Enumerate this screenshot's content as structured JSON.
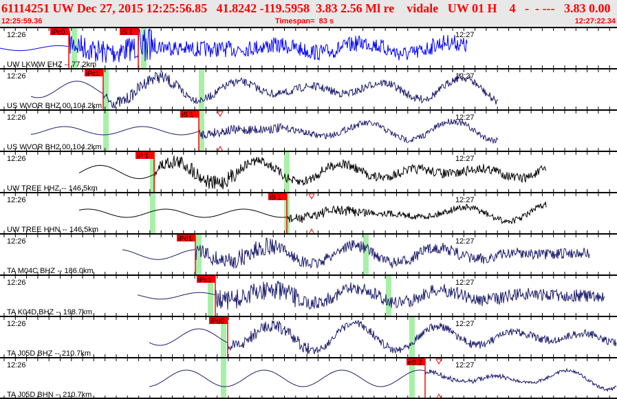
{
  "header": {
    "title": "61114251 UW Dec 27, 2015 12:25:56.85   41.8242 -119.5958  3.83 2.56 Ml re    vidale   UW 01 H    4   -  - ---   3.83 0.00",
    "start_time": "12:25:59.36",
    "timespan": "Timespan=  83 s",
    "end_time": "12:27:22.34"
  },
  "time_labels": {
    "minute1": "12:26",
    "minute2": "12:27"
  },
  "colors": {
    "pick": "#ff0000",
    "window": "#a8f0a8",
    "blue": "#0000ff",
    "navy": "#1c1c6c",
    "black": "#000000",
    "header_bg": "#e8e8e8"
  },
  "channels": [
    {
      "label": "UW LKWW EHZ -- 77.2km",
      "color": "blue",
      "pick": "iPc0",
      "s_pick": "iS 1"
    },
    {
      "label": "US WVOR BHZ 00 104.2km",
      "color": "navy",
      "pick": "iPc1"
    },
    {
      "label": "US WVOR BH2 00 104.2km",
      "color": "navy",
      "pick": "iS 1"
    },
    {
      "label": "UW TREE HHZ -- 146.5km",
      "color": "black",
      "pick": "iP 1"
    },
    {
      "label": "UW TREE HHN -- 146.5km",
      "color": "black",
      "pick": "iS 1"
    },
    {
      "label": "TA M04C BHZ -- 186.0km",
      "color": "navy",
      "pick": "iPd1"
    },
    {
      "label": "TA K04D BHZ -- 198.7km",
      "color": "navy",
      "pick": "iPc1"
    },
    {
      "label": "TA J05D BHZ -- 210.7km",
      "color": "navy",
      "pick": "iPd0"
    },
    {
      "label": "TA J05D BHN -- 210.7km",
      "color": "navy",
      "pick": "eS 2"
    }
  ]
}
